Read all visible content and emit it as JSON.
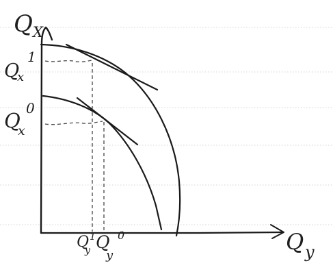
{
  "labels": {
    "y_axis": "Q",
    "y_axis_sub": "X",
    "x_axis": "Q",
    "x_axis_sub": "y",
    "qx1": "Q",
    "qx1_sub": "x",
    "qx1_sup": "1",
    "qx0": "Q",
    "qx0_sub": "x",
    "qx0_sup": "0",
    "qy1": "Q",
    "qy1_sub": "y",
    "qy1_sup": "1",
    "qy0": "Q",
    "qy0_sub": "y",
    "qy0_sup": "0"
  },
  "colors": {
    "ink": "#1a1a1a",
    "paper_lines": "#d4d4d4",
    "background": "#ffffff"
  }
}
